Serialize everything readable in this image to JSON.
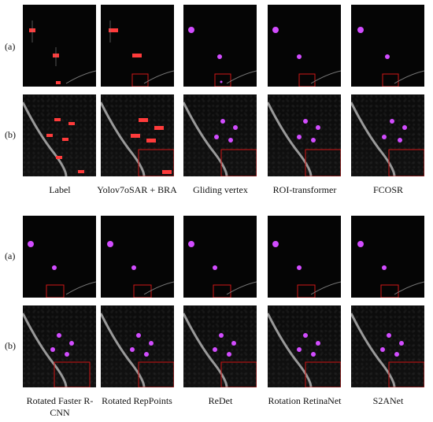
{
  "rows": {
    "a": "(a)",
    "b": "(b)"
  },
  "top_captions": [
    "Label",
    "Yolov7oSAR + BRA",
    "Gliding vertex",
    "ROI-transformer",
    "FCOSR"
  ],
  "bottom_captions": [
    "Rotated Faster R-CNN",
    "Rotated RepPoints",
    "ReDet",
    "Rotation RetinaNet",
    "S2ANet"
  ],
  "colors": {
    "detection_magenta": "#d24cff",
    "label_red": "#ff3b3b",
    "zoom_box": "#d01616",
    "tile_background": "#050505"
  }
}
